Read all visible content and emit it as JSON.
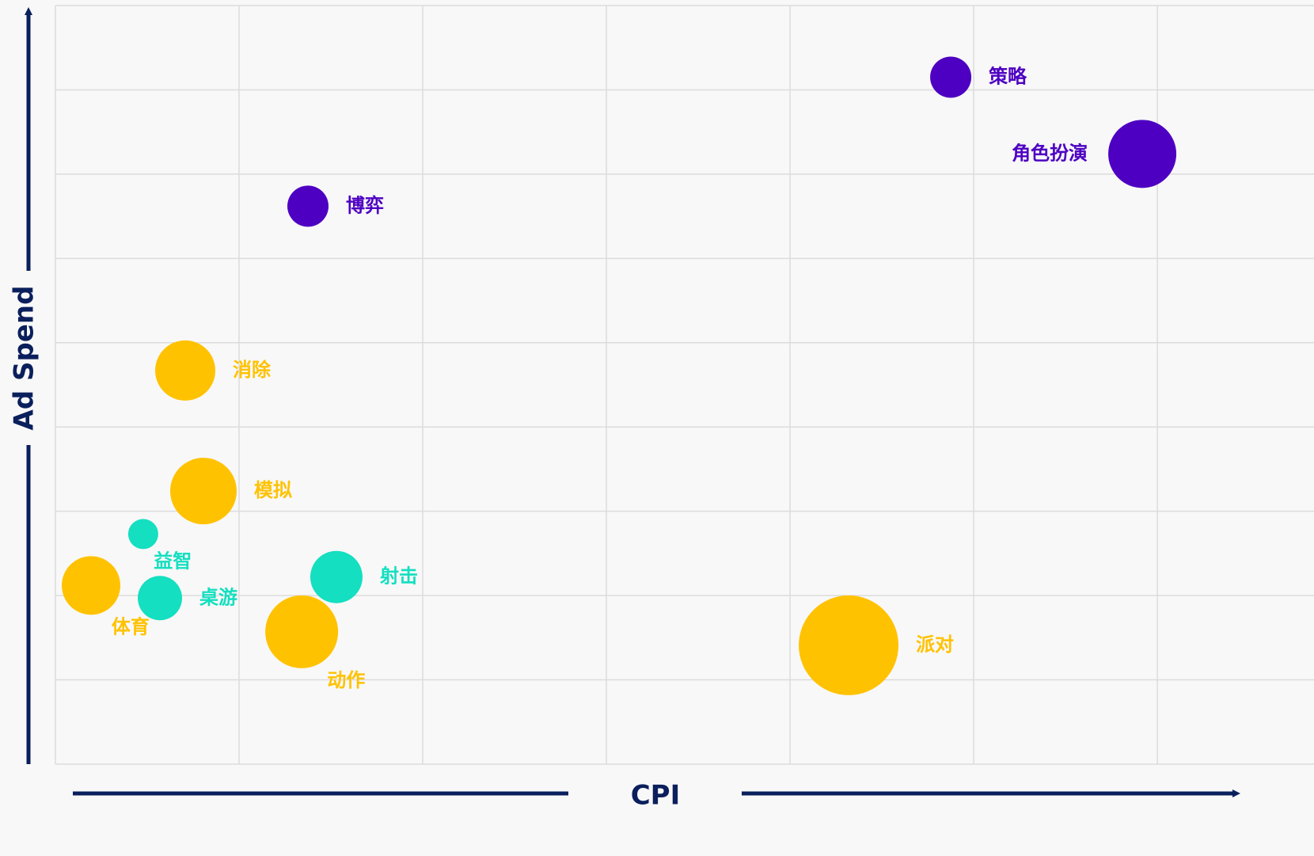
{
  "chart_data": {
    "type": "bubble",
    "x_label": "CPI",
    "y_label": "Ad Spend",
    "xlim": [
      0,
      6.853
    ],
    "ylim": [
      0,
      9
    ],
    "xticks": [
      0,
      1,
      2,
      3,
      4,
      5,
      6
    ],
    "yticks": [
      0,
      1,
      2,
      3,
      4,
      5,
      6,
      7,
      8,
      9
    ],
    "grid": true,
    "series": [
      {
        "color": "#4e00c2",
        "labels": [
          "策略",
          "角色扮演",
          "博弈"
        ],
        "x": [
          4.875,
          5.918,
          1.375
        ],
        "values": [
          8.15,
          7.24,
          6.62
        ],
        "sizes": [
          2.6,
          4.3,
          2.6
        ]
      },
      {
        "color": "#ffc200",
        "labels": [
          "消除",
          "模拟",
          "体育",
          "动作",
          "派对"
        ],
        "x": [
          0.707,
          0.806,
          0.194,
          1.341,
          4.319
        ],
        "values": [
          4.67,
          3.24,
          2.12,
          1.57,
          1.41
        ],
        "sizes": [
          3.8,
          4.2,
          3.7,
          4.6,
          6.3
        ]
      },
      {
        "color": "#14dfc0",
        "labels": [
          "益智",
          "桌游",
          "射击"
        ],
        "x": [
          0.478,
          0.569,
          1.53
        ],
        "values": [
          2.73,
          1.97,
          2.22
        ],
        "sizes": [
          1.9,
          2.8,
          3.3
        ]
      }
    ]
  }
}
